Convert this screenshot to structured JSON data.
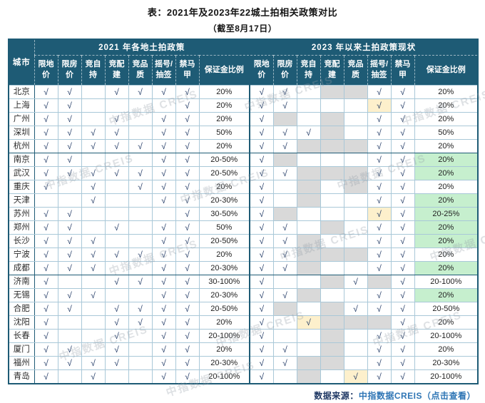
{
  "title": "表：2021年及2023年22城土拍相关政策对比",
  "subtitle": "（截至8月17日）",
  "watermark": "中指数据 CREIS",
  "footer": {
    "prefix": "数据来源：",
    "link": "中指数据CREIS（点击查看）"
  },
  "colors": {
    "header_bg": "#1e5b75",
    "grid_line": "#a9c8d8",
    "cancelled_gray": "#d9d9d9",
    "new_policy_yellow": "#fdf0cc",
    "lowered_deposit_green": "#c6efce",
    "check_navy": "#1f3864",
    "link_blue": "#2e75b5"
  },
  "table": {
    "city_header": "城市",
    "group_2021": "2021 年各地土拍政策",
    "group_2023": "2023 年以来土拍政策现状",
    "policy_columns": [
      "限地价",
      "限房价",
      "竞自持",
      "竞配建",
      "竞品质",
      "摇号/抽签",
      "禁马甲"
    ],
    "deposit_header": "保证金比例",
    "check": "√",
    "rows": [
      {
        "city": "北京",
        "y2021": {
          "cells": [
            "c",
            "c",
            "",
            "c",
            "c",
            "c",
            "c"
          ],
          "deposit": "20%"
        },
        "y2023": {
          "cells": [
            "c",
            "c",
            "",
            "g",
            "g",
            "c",
            "c"
          ],
          "deposit": "20%",
          "deposit_bg": ""
        }
      },
      {
        "city": "上海",
        "y2021": {
          "cells": [
            "c",
            "c",
            "",
            "",
            "",
            "",
            "c"
          ],
          "deposit": "20%"
        },
        "y2023": {
          "cells": [
            "c",
            "c",
            "",
            "",
            "",
            "cy",
            "c"
          ],
          "deposit": "20%",
          "deposit_bg": ""
        }
      },
      {
        "city": "广州",
        "y2021": {
          "cells": [
            "c",
            "c",
            "",
            "c",
            "",
            "c",
            "c"
          ],
          "deposit": "20%"
        },
        "y2023": {
          "cells": [
            "c",
            "g",
            "",
            "g",
            "",
            "c",
            "c"
          ],
          "deposit": "20%",
          "deposit_bg": ""
        }
      },
      {
        "city": "深圳",
        "y2021": {
          "cells": [
            "c",
            "c",
            "c",
            "c",
            "",
            "c",
            "c"
          ],
          "deposit": "50%"
        },
        "y2023": {
          "cells": [
            "c",
            "c",
            "c",
            "g",
            "",
            "c",
            "c"
          ],
          "deposit": "50%",
          "deposit_bg": ""
        }
      },
      {
        "city": "杭州",
        "y2021": {
          "cells": [
            "c",
            "c",
            "c",
            "c",
            "c",
            "c",
            "c"
          ],
          "deposit": "20%"
        },
        "y2023": {
          "cells": [
            "c",
            "c",
            "g",
            "g",
            "g",
            "c",
            "c"
          ],
          "deposit": "20%",
          "deposit_bg": ""
        }
      },
      {
        "city": "南京",
        "y2021": {
          "cells": [
            "c",
            "c",
            "",
            "",
            "",
            "c",
            "c"
          ],
          "deposit": "20-50%"
        },
        "y2023": {
          "cells": [
            "c",
            "g",
            "",
            "",
            "",
            "c",
            "c"
          ],
          "deposit": "20%",
          "deposit_bg": "green"
        }
      },
      {
        "city": "武汉",
        "y2021": {
          "cells": [
            "c",
            "c",
            "c",
            "c",
            "c",
            "c",
            "c"
          ],
          "deposit": "20-50%"
        },
        "y2023": {
          "cells": [
            "c",
            "c",
            "g",
            "g",
            "g",
            "c",
            "c"
          ],
          "deposit": "20%",
          "deposit_bg": "green"
        }
      },
      {
        "city": "重庆",
        "y2021": {
          "cells": [
            "c",
            "",
            "c",
            "",
            "c",
            "c",
            "c"
          ],
          "deposit": "20%"
        },
        "y2023": {
          "cells": [
            "c",
            "",
            "g",
            "",
            "g",
            "c",
            "c"
          ],
          "deposit": "20%",
          "deposit_bg": ""
        }
      },
      {
        "city": "天津",
        "y2021": {
          "cells": [
            "",
            "",
            "c",
            "",
            "",
            "c",
            "c"
          ],
          "deposit": "20-30%"
        },
        "y2023": {
          "cells": [
            "c",
            "",
            "g",
            "",
            "",
            "c",
            "c"
          ],
          "deposit": "20%",
          "deposit_bg": "green"
        }
      },
      {
        "city": "苏州",
        "y2021": {
          "cells": [
            "c",
            "c",
            "",
            "",
            "",
            "",
            "c"
          ],
          "deposit": "30-50%"
        },
        "y2023": {
          "cells": [
            "c",
            "g",
            "",
            "",
            "",
            "cy",
            "c"
          ],
          "deposit": "20-25%",
          "deposit_bg": "green"
        }
      },
      {
        "city": "郑州",
        "y2021": {
          "cells": [
            "c",
            "c",
            "",
            "c",
            "",
            "c",
            "c"
          ],
          "deposit": "50%"
        },
        "y2023": {
          "cells": [
            "c",
            "c",
            "",
            "g",
            "",
            "c",
            "c"
          ],
          "deposit": "20%",
          "deposit_bg": "green"
        }
      },
      {
        "city": "长沙",
        "y2021": {
          "cells": [
            "c",
            "c",
            "c",
            "",
            "",
            "c",
            "c"
          ],
          "deposit": "20-50%"
        },
        "y2023": {
          "cells": [
            "c",
            "c",
            "g",
            "",
            "",
            "c",
            "c"
          ],
          "deposit": "20%",
          "deposit_bg": "green"
        }
      },
      {
        "city": "宁波",
        "y2021": {
          "cells": [
            "c",
            "c",
            "c",
            "c",
            "c",
            "c",
            "c"
          ],
          "deposit": "20%"
        },
        "y2023": {
          "cells": [
            "c",
            "c",
            "g",
            "g",
            "g",
            "c",
            "c"
          ],
          "deposit": "20%",
          "deposit_bg": ""
        }
      },
      {
        "city": "成都",
        "y2021": {
          "cells": [
            "c",
            "c",
            "c",
            "",
            "",
            "c",
            "c"
          ],
          "deposit": "20-30%"
        },
        "y2023": {
          "cells": [
            "c",
            "c",
            "g",
            "",
            "",
            "c",
            "c"
          ],
          "deposit": "20%",
          "deposit_bg": "green"
        }
      },
      {
        "city": "济南",
        "y2021": {
          "cells": [
            "c",
            "",
            "",
            "c",
            "c",
            "c",
            "c"
          ],
          "deposit": "30-100%"
        },
        "y2023": {
          "cells": [
            "c",
            "",
            "",
            "g",
            "c",
            "g",
            "c"
          ],
          "deposit": "20-100%",
          "deposit_bg": ""
        }
      },
      {
        "city": "无锡",
        "y2021": {
          "cells": [
            "c",
            "c",
            "c",
            "",
            "",
            "c",
            "c"
          ],
          "deposit": "20-30%"
        },
        "y2023": {
          "cells": [
            "c",
            "c",
            "g",
            "",
            "",
            "c",
            "c"
          ],
          "deposit": "20%",
          "deposit_bg": "green"
        }
      },
      {
        "city": "合肥",
        "y2021": {
          "cells": [
            "c",
            "c",
            "",
            "c",
            "c",
            "c",
            "c"
          ],
          "deposit": "20-50%"
        },
        "y2023": {
          "cells": [
            "c",
            "g",
            "",
            "g",
            "c",
            "c",
            "c"
          ],
          "deposit": "20-50%",
          "deposit_bg": ""
        }
      },
      {
        "city": "沈阳",
        "y2021": {
          "cells": [
            "c",
            "",
            "",
            "c",
            "c",
            "c",
            "c"
          ],
          "deposit": "20%"
        },
        "y2023": {
          "cells": [
            "c",
            "",
            "cy",
            "g",
            "g",
            "g",
            "c"
          ],
          "deposit": "20%",
          "deposit_bg": ""
        }
      },
      {
        "city": "长春",
        "y2021": {
          "cells": [
            "c",
            "",
            "",
            "c",
            "",
            "c",
            "c"
          ],
          "deposit": "20-100%"
        },
        "y2023": {
          "cells": [
            "c",
            "",
            "",
            "g",
            "",
            "c",
            "c"
          ],
          "deposit": "20-100%",
          "deposit_bg": ""
        }
      },
      {
        "city": "厦门",
        "y2021": {
          "cells": [
            "c",
            "c",
            "",
            "c",
            "",
            "c",
            "c"
          ],
          "deposit": "20%"
        },
        "y2023": {
          "cells": [
            "c",
            "c",
            "",
            "g",
            "",
            "c",
            "c"
          ],
          "deposit": "20%",
          "deposit_bg": ""
        }
      },
      {
        "city": "福州",
        "y2021": {
          "cells": [
            "c",
            "c",
            "c",
            "c",
            "",
            "c",
            "c"
          ],
          "deposit": "20-30%"
        },
        "y2023": {
          "cells": [
            "c",
            "c",
            "g",
            "g",
            "",
            "c",
            "c"
          ],
          "deposit": "20-30%",
          "deposit_bg": ""
        }
      },
      {
        "city": "青岛",
        "y2021": {
          "cells": [
            "c",
            "",
            "c",
            "",
            "",
            "c",
            "c"
          ],
          "deposit": "20-100%"
        },
        "y2023": {
          "cells": [
            "c",
            "",
            "g",
            "",
            "cy",
            "c",
            "c"
          ],
          "deposit": "20-100%",
          "deposit_bg": ""
        }
      }
    ]
  }
}
